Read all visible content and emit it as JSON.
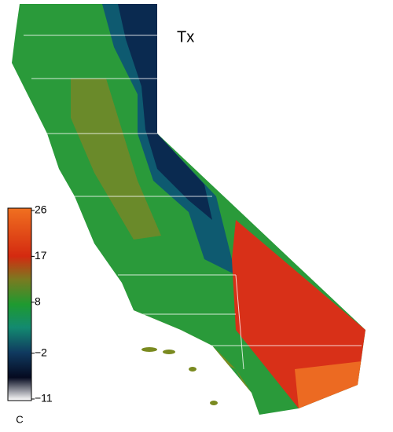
{
  "title": "Tx",
  "colorbar": {
    "unit": "C",
    "lim": [
      -11,
      26
    ],
    "ticks": [
      26,
      17,
      8,
      {
        "value": -2,
        "label": "−2"
      },
      {
        "value": -11,
        "label": "−11"
      }
    ]
  }
}
